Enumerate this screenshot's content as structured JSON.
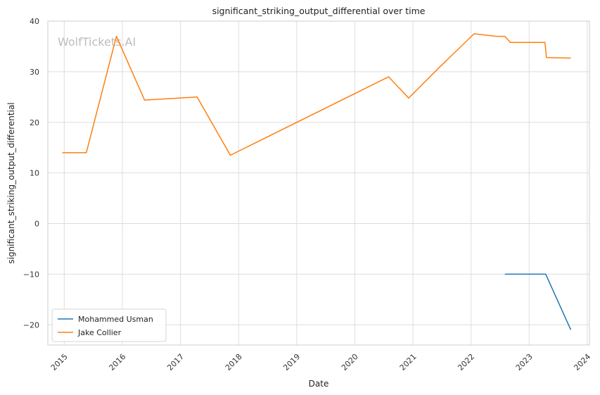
{
  "chart_data": {
    "type": "line",
    "title": "significant_striking_output_differential over time",
    "xlabel": "Date",
    "ylabel": "significant_striking_output_differential",
    "xlim": [
      "2014-09-20",
      "2024-01-15"
    ],
    "ylim": [
      -24,
      40
    ],
    "x_ticks": [
      "2015",
      "2016",
      "2017",
      "2018",
      "2019",
      "2020",
      "2021",
      "2022",
      "2023",
      "2024"
    ],
    "y_ticks": [
      40,
      30,
      20,
      10,
      0,
      -10,
      -20
    ],
    "y_tick_labels": [
      "40",
      "30",
      "20",
      "10",
      "0",
      "−10",
      "−20"
    ],
    "grid": true,
    "legend_position": "lower-left",
    "series": [
      {
        "name": "Mohammed Usman",
        "color": "#1f77b4",
        "x": [
          "2022-08-01",
          "2023-04-15",
          "2023-09-20"
        ],
        "y": [
          -10,
          -10,
          -21
        ]
      },
      {
        "name": "Jake Collier",
        "color": "#ff7f0e",
        "x": [
          "2014-12-20",
          "2015-05-20",
          "2015-11-25",
          "2016-05-20",
          "2017-04-15",
          "2017-11-10",
          "2020-08-01",
          "2020-12-05",
          "2021-06-20",
          "2022-01-20",
          "2022-06-10",
          "2022-08-01",
          "2022-09-05",
          "2023-04-10",
          "2023-04-20",
          "2023-09-20"
        ],
        "y": [
          14,
          14,
          37,
          24.4,
          25,
          13.5,
          29,
          24.8,
          31,
          37.5,
          37,
          37,
          35.8,
          35.8,
          32.8,
          32.7
        ]
      }
    ]
  },
  "watermark": "WolfTickets.AI"
}
